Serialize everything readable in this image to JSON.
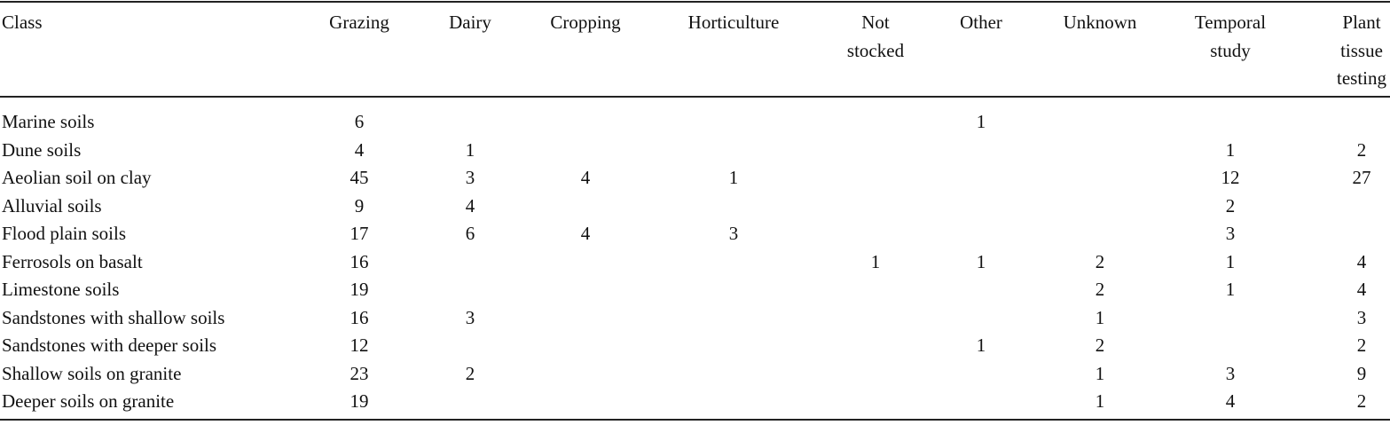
{
  "table": {
    "header": [
      [
        "Class"
      ],
      [
        "Grazing"
      ],
      [
        "Dairy"
      ],
      [
        "Cropping"
      ],
      [
        "Horticulture"
      ],
      [
        "Not",
        "stocked"
      ],
      [
        "Other"
      ],
      [
        "Unknown"
      ],
      [
        "Temporal",
        "study"
      ],
      [
        "Plant",
        "tissue",
        "testing"
      ]
    ],
    "rows": [
      {
        "class": "Marine soils",
        "cells": [
          6,
          null,
          null,
          null,
          null,
          1,
          null,
          null,
          null
        ]
      },
      {
        "class": "Dune soils",
        "cells": [
          4,
          1,
          null,
          null,
          null,
          null,
          null,
          1,
          2
        ]
      },
      {
        "class": "Aeolian soil on clay",
        "cells": [
          45,
          3,
          4,
          1,
          null,
          null,
          null,
          12,
          27
        ]
      },
      {
        "class": "Alluvial soils",
        "cells": [
          9,
          4,
          null,
          null,
          null,
          null,
          null,
          2,
          null
        ]
      },
      {
        "class": "Flood plain soils",
        "cells": [
          17,
          6,
          4,
          3,
          null,
          null,
          null,
          3,
          null
        ]
      },
      {
        "class": "Ferrosols on basalt",
        "cells": [
          16,
          null,
          null,
          null,
          1,
          1,
          2,
          1,
          4
        ]
      },
      {
        "class": "Limestone soils",
        "cells": [
          19,
          null,
          null,
          null,
          null,
          null,
          2,
          1,
          4
        ]
      },
      {
        "class": "Sandstones with shallow soils",
        "cells": [
          16,
          3,
          null,
          null,
          null,
          null,
          1,
          null,
          3
        ]
      },
      {
        "class": "Sandstones with deeper soils",
        "cells": [
          12,
          null,
          null,
          null,
          null,
          1,
          2,
          null,
          2
        ]
      },
      {
        "class": "Shallow soils on granite",
        "cells": [
          23,
          2,
          null,
          null,
          null,
          null,
          1,
          3,
          9
        ]
      },
      {
        "class": "Deeper soils on granite",
        "cells": [
          19,
          null,
          null,
          null,
          null,
          null,
          1,
          4,
          2
        ]
      }
    ]
  }
}
